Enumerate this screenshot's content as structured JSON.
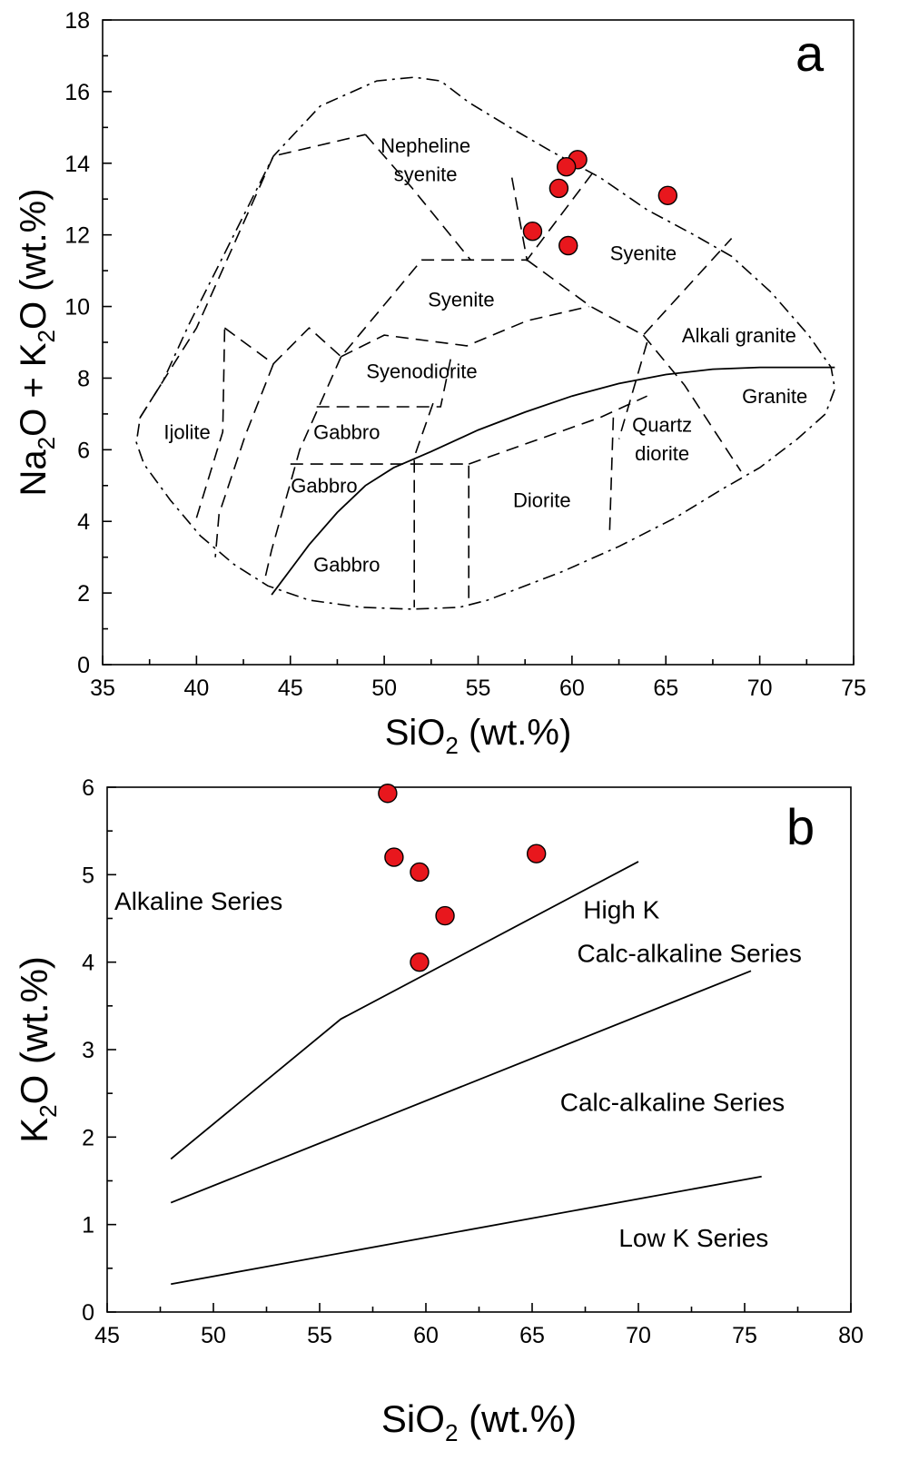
{
  "chart_data": [
    {
      "panel": "a",
      "type": "scatter",
      "xlabel_main": "SiO",
      "xlabel_sub": "2",
      "xlabel_tail": " (wt.%)",
      "ylabel_parts": [
        "Na",
        "2",
        "O + K",
        "2",
        "O (wt.%)"
      ],
      "xlim": [
        35,
        75
      ],
      "ylim": [
        0,
        18
      ],
      "xticks": [
        35,
        40,
        45,
        50,
        55,
        60,
        65,
        70,
        75
      ],
      "yticks": [
        0,
        2,
        4,
        6,
        8,
        10,
        12,
        14,
        16,
        18
      ],
      "fields": [
        {
          "label": "Nepheline",
          "x": 52.2,
          "y": 14.3
        },
        {
          "label": "syenite",
          "x": 52.2,
          "y": 13.5
        },
        {
          "label": "Syenite",
          "x": 63.8,
          "y": 11.3
        },
        {
          "label": "Syenite",
          "x": 54.1,
          "y": 10.0
        },
        {
          "label": "Alkali granite",
          "x": 68.9,
          "y": 9.0
        },
        {
          "label": "Syenodiorite",
          "x": 52.0,
          "y": 8.0
        },
        {
          "label": "Granite",
          "x": 70.8,
          "y": 7.3
        },
        {
          "label": "Ijolite",
          "x": 39.5,
          "y": 6.3
        },
        {
          "label": "Gabbro",
          "x": 48.0,
          "y": 6.3
        },
        {
          "label": "Quartz",
          "x": 64.8,
          "y": 6.5
        },
        {
          "label": "diorite",
          "x": 64.8,
          "y": 5.7
        },
        {
          "label": "Gabbro",
          "x": 46.8,
          "y": 4.8
        },
        {
          "label": "Diorite",
          "x": 58.4,
          "y": 4.4
        },
        {
          "label": "Gabbro",
          "x": 48.0,
          "y": 2.6
        }
      ],
      "points": [
        {
          "x": 60.3,
          "y": 14.1
        },
        {
          "x": 59.7,
          "y": 13.9
        },
        {
          "x": 59.3,
          "y": 13.3
        },
        {
          "x": 65.1,
          "y": 13.1
        },
        {
          "x": 57.9,
          "y": 12.1
        },
        {
          "x": 59.8,
          "y": 11.7
        }
      ]
    },
    {
      "panel": "b",
      "type": "scatter",
      "xlabel_main": "SiO",
      "xlabel_sub": "2",
      "xlabel_tail": " (wt.%)",
      "ylabel_parts": [
        "K",
        "2",
        "O (wt.%)"
      ],
      "xlim": [
        45,
        80
      ],
      "ylim": [
        0,
        6
      ],
      "xticks": [
        45,
        50,
        55,
        60,
        65,
        70,
        75,
        80
      ],
      "yticks": [
        0,
        1,
        2,
        3,
        4,
        5,
        6
      ],
      "fields": [
        {
          "label": "Alkaline Series",
          "x": 49.3,
          "y": 4.6
        },
        {
          "label": "High K",
          "x": 69.2,
          "y": 4.5
        },
        {
          "label": "Calc-alkaline Series",
          "x": 72.4,
          "y": 4.0
        },
        {
          "label": "Calc-alkaline Series",
          "x": 71.6,
          "y": 2.3
        },
        {
          "label": "Low K Series",
          "x": 72.6,
          "y": 0.75
        }
      ],
      "points": [
        {
          "x": 58.2,
          "y": 5.93
        },
        {
          "x": 58.5,
          "y": 5.2
        },
        {
          "x": 59.7,
          "y": 5.03
        },
        {
          "x": 65.2,
          "y": 5.24
        },
        {
          "x": 60.9,
          "y": 4.53
        },
        {
          "x": 59.7,
          "y": 4.0
        }
      ]
    }
  ]
}
